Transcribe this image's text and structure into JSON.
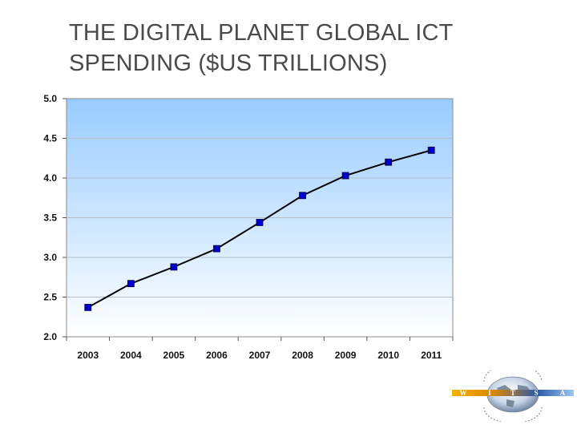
{
  "slide": {
    "title_line1": "THE DIGITAL PLANET GLOBAL ICT",
    "title_line2": "SPENDING ($US TRILLIONS)"
  },
  "chart_data": {
    "type": "line",
    "title": "THE DIGITAL PLANET GLOBAL ICT SPENDING ($US TRILLIONS)",
    "xlabel": "",
    "ylabel": "",
    "categories": [
      "2003",
      "2004",
      "2005",
      "2006",
      "2007",
      "2008",
      "2009",
      "2010",
      "2011"
    ],
    "series": [
      {
        "name": "Global ICT Spending",
        "values": [
          2.37,
          2.67,
          2.88,
          3.11,
          3.44,
          3.78,
          4.03,
          4.2,
          4.35
        ]
      }
    ],
    "ylim": [
      2.0,
      5.0
    ],
    "yticks": [
      "2.0",
      "2.5",
      "3.0",
      "3.5",
      "4.0",
      "4.5",
      "5.0"
    ],
    "grid": true,
    "colors": {
      "plot_top": "#99ccff",
      "plot_bottom": "#ffffff",
      "line": "#000000",
      "marker": "#0000cc",
      "grid": "#b4bcc8"
    }
  },
  "logo": {
    "letters": [
      "W",
      "I",
      "T",
      "S",
      "A"
    ]
  }
}
